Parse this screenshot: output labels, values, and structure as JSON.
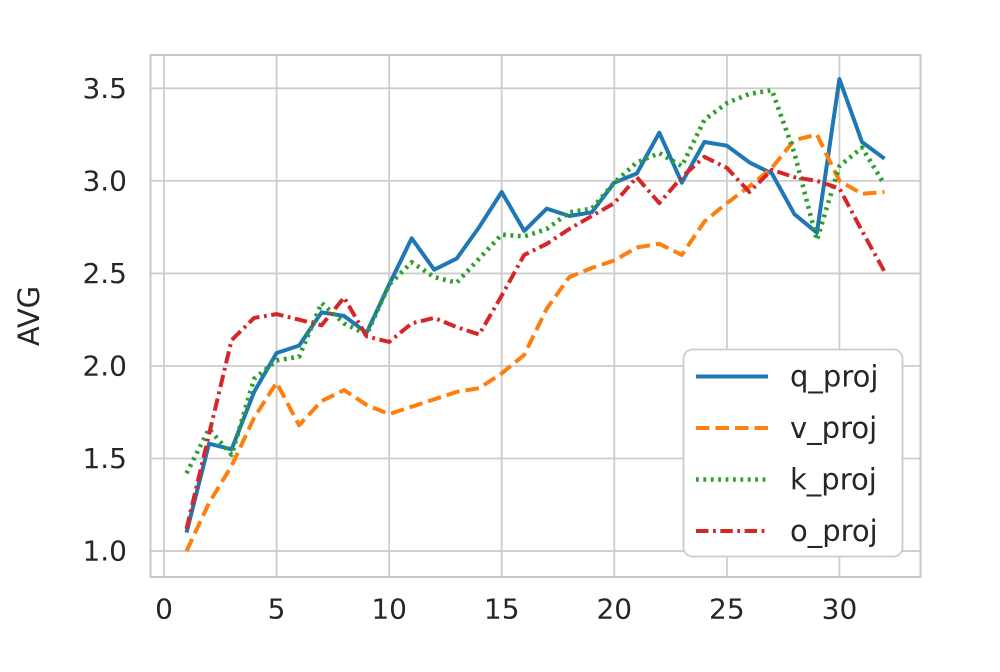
{
  "chart_data": {
    "type": "line",
    "title": "",
    "xlabel": "",
    "ylabel": "AVG",
    "x": [
      1,
      2,
      3,
      4,
      5,
      6,
      7,
      8,
      9,
      10,
      11,
      12,
      13,
      14,
      15,
      16,
      17,
      18,
      19,
      20,
      21,
      22,
      23,
      24,
      25,
      26,
      27,
      28,
      29,
      30,
      31,
      32
    ],
    "series": [
      {
        "name": "q_proj",
        "color": "#1f77b4",
        "linestyle": "solid",
        "values": [
          1.1,
          1.58,
          1.55,
          1.86,
          2.07,
          2.11,
          2.29,
          2.27,
          2.18,
          2.44,
          2.69,
          2.52,
          2.58,
          2.75,
          2.94,
          2.73,
          2.85,
          2.81,
          2.83,
          2.99,
          3.04,
          3.26,
          2.99,
          3.21,
          3.19,
          3.1,
          3.04,
          2.82,
          2.72,
          3.55,
          3.21,
          3.12
        ]
      },
      {
        "name": "v_proj",
        "color": "#ff7f0e",
        "linestyle": "dashed",
        "values": [
          1.0,
          1.26,
          1.46,
          1.72,
          1.91,
          1.68,
          1.81,
          1.87,
          1.79,
          1.74,
          1.78,
          1.82,
          1.86,
          1.88,
          1.96,
          2.06,
          2.31,
          2.48,
          2.53,
          2.57,
          2.64,
          2.66,
          2.6,
          2.78,
          2.88,
          2.97,
          3.07,
          3.22,
          3.25,
          3.0,
          2.93,
          2.94
        ]
      },
      {
        "name": "k_proj",
        "color": "#2ca02c",
        "linestyle": "dotted",
        "values": [
          1.42,
          1.66,
          1.52,
          1.93,
          2.03,
          2.05,
          2.34,
          2.23,
          2.17,
          2.44,
          2.56,
          2.48,
          2.45,
          2.58,
          2.71,
          2.7,
          2.74,
          2.83,
          2.85,
          2.99,
          3.1,
          3.15,
          3.08,
          3.33,
          3.42,
          3.47,
          3.49,
          3.15,
          2.68,
          3.08,
          3.18,
          2.98
        ]
      },
      {
        "name": "o_proj",
        "color": "#d62728",
        "linestyle": "dashdot",
        "values": [
          1.12,
          1.63,
          2.14,
          2.26,
          2.28,
          2.25,
          2.22,
          2.37,
          2.16,
          2.13,
          2.23,
          2.26,
          2.21,
          2.17,
          2.38,
          2.6,
          2.66,
          2.74,
          2.81,
          2.88,
          3.02,
          2.88,
          3.02,
          3.13,
          3.07,
          2.94,
          3.06,
          3.02,
          3.0,
          2.96,
          2.73,
          2.51
        ]
      }
    ],
    "x_ticks": [
      0,
      5,
      10,
      15,
      20,
      25,
      30
    ],
    "y_ticks": [
      "1.0",
      "1.5",
      "2.0",
      "2.5",
      "3.0",
      "3.5"
    ],
    "y_tick_values": [
      1.0,
      1.5,
      2.0,
      2.5,
      3.0,
      3.5
    ],
    "xlim": [
      -0.6,
      33.6
    ],
    "ylim": [
      0.86,
      3.68
    ],
    "grid": true,
    "legend_position": "lower right"
  },
  "style": {
    "background": "#ffffff",
    "grid_color": "#cdcdcd",
    "spine_color": "#c9c9c9",
    "text_color": "#262626",
    "legend_border_color": "#cccccc",
    "legend_background": "#ffffff"
  }
}
